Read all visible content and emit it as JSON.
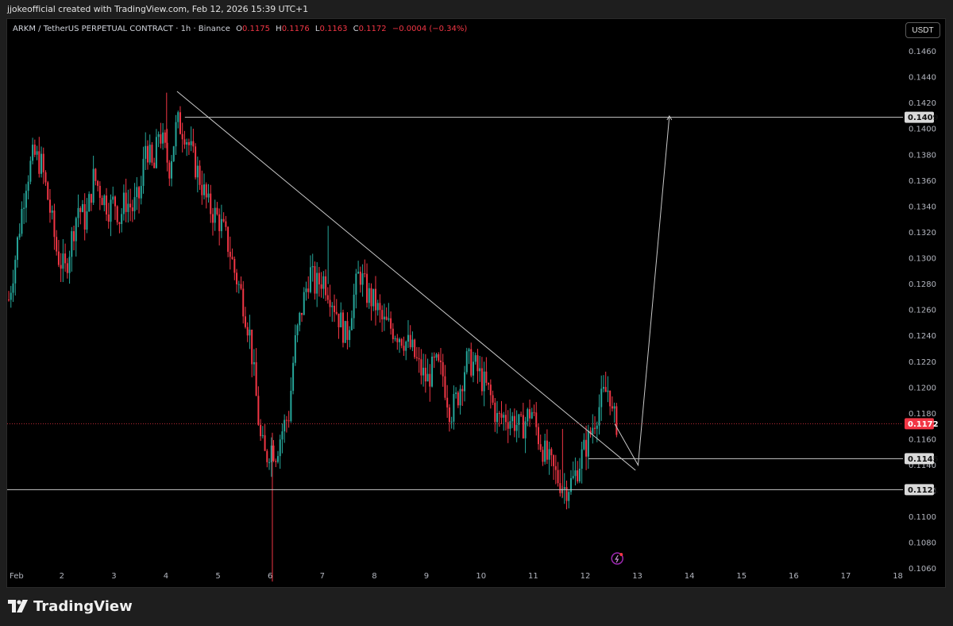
{
  "page": {
    "attribution": "jjokeofficial created with TradingView.com, Feb 12, 2026 15:39 UTC+1",
    "brand": "TradingView"
  },
  "legend": {
    "symbol": "ARKM / TetherUS PERPETUAL CONTRACT · 1h · Binance",
    "open_label": "O",
    "open": "0.1175",
    "high_label": "H",
    "high": "0.1176",
    "low_label": "L",
    "low": "0.1163",
    "close_label": "C",
    "close": "0.1172",
    "change": "−0.0004 (−0.34%)"
  },
  "toolbar": {
    "currency": "USDT"
  },
  "colors": {
    "up": "#26a69a",
    "down": "#f23645",
    "background": "#000000",
    "drawing_lines": "#c8c8c8",
    "last_price_badge": "#f23645"
  },
  "chart_data": {
    "type": "candlestick",
    "x_ticks": [
      "Feb",
      "2",
      "3",
      "4",
      "5",
      "6",
      "7",
      "8",
      "9",
      "10",
      "11",
      "12",
      "13",
      "14",
      "15",
      "16",
      "17",
      "18"
    ],
    "y_ticks": [
      "0.1460",
      "0.1440",
      "0.1420",
      "0.1400",
      "0.1380",
      "0.1360",
      "0.1340",
      "0.1320",
      "0.1300",
      "0.1280",
      "0.1260",
      "0.1240",
      "0.1220",
      "0.1200",
      "0.1180",
      "0.1160",
      "0.1140",
      "0.1120",
      "0.1100",
      "0.1080",
      "0.1060"
    ],
    "ylim": [
      0.105,
      0.148
    ],
    "xlim": [
      0.97,
      18.0
    ],
    "last_price": "0.1172",
    "horizontal_levels": [
      {
        "price": "0.1409"
      },
      {
        "price": "0.1145"
      },
      {
        "price": "0.1121"
      }
    ],
    "trendline": {
      "from": [
        4.2,
        0.1429
      ],
      "to": [
        13.0,
        0.1136
      ]
    },
    "projection_path": [
      [
        12.6,
        0.1172
      ],
      [
        13.05,
        0.114
      ],
      [
        13.65,
        0.141
      ]
    ],
    "price_path": [
      [
        0.97,
        0.1268
      ],
      [
        1.1,
        0.1302
      ],
      [
        1.3,
        0.136
      ],
      [
        1.45,
        0.138
      ],
      [
        1.6,
        0.1372
      ],
      [
        1.75,
        0.134
      ],
      [
        1.9,
        0.1303
      ],
      [
        2.05,
        0.129
      ],
      [
        2.15,
        0.131
      ],
      [
        2.3,
        0.134
      ],
      [
        2.45,
        0.1328
      ],
      [
        2.6,
        0.1363
      ],
      [
        2.75,
        0.135
      ],
      [
        2.9,
        0.1338
      ],
      [
        3.0,
        0.1345
      ],
      [
        3.1,
        0.133
      ],
      [
        3.2,
        0.1345
      ],
      [
        3.35,
        0.1338
      ],
      [
        3.5,
        0.135
      ],
      [
        3.6,
        0.139
      ],
      [
        3.75,
        0.1365
      ],
      [
        3.85,
        0.14
      ],
      [
        3.95,
        0.1385
      ],
      [
        4.05,
        0.137
      ],
      [
        4.2,
        0.1405
      ],
      [
        4.35,
        0.1398
      ],
      [
        4.5,
        0.1378
      ],
      [
        4.65,
        0.136
      ],
      [
        4.8,
        0.134
      ],
      [
        5.0,
        0.133
      ],
      [
        5.1,
        0.132
      ],
      [
        5.2,
        0.1308
      ],
      [
        5.3,
        0.129
      ],
      [
        5.45,
        0.127
      ],
      [
        5.6,
        0.124
      ],
      [
        5.7,
        0.12
      ],
      [
        5.8,
        0.116
      ],
      [
        5.9,
        0.1145
      ],
      [
        6.0,
        0.1155
      ],
      [
        6.1,
        0.115
      ],
      [
        6.2,
        0.1165
      ],
      [
        6.35,
        0.118
      ],
      [
        6.45,
        0.123
      ],
      [
        6.6,
        0.1262
      ],
      [
        6.75,
        0.129
      ],
      [
        6.85,
        0.1278
      ],
      [
        7.0,
        0.1285
      ],
      [
        7.15,
        0.1272
      ],
      [
        7.3,
        0.1255
      ],
      [
        7.45,
        0.1238
      ],
      [
        7.55,
        0.1262
      ],
      [
        7.7,
        0.129
      ],
      [
        7.85,
        0.1272
      ],
      [
        8.0,
        0.1265
      ],
      [
        8.15,
        0.125
      ],
      [
        8.35,
        0.1245
      ],
      [
        8.5,
        0.124
      ],
      [
        8.7,
        0.123
      ],
      [
        8.85,
        0.1215
      ],
      [
        9.0,
        0.1205
      ],
      [
        9.15,
        0.1218
      ],
      [
        9.3,
        0.121
      ],
      [
        9.45,
        0.118
      ],
      [
        9.6,
        0.1195
      ],
      [
        9.75,
        0.122
      ],
      [
        9.9,
        0.1218
      ],
      [
        10.0,
        0.121
      ],
      [
        10.2,
        0.1195
      ],
      [
        10.35,
        0.1175
      ],
      [
        10.5,
        0.1178
      ],
      [
        10.65,
        0.1175
      ],
      [
        10.8,
        0.1168
      ],
      [
        11.0,
        0.1183
      ],
      [
        11.15,
        0.116
      ],
      [
        11.3,
        0.1145
      ],
      [
        11.5,
        0.113
      ],
      [
        11.65,
        0.1122
      ],
      [
        11.8,
        0.1128
      ],
      [
        11.95,
        0.1145
      ],
      [
        12.1,
        0.116
      ],
      [
        12.25,
        0.118
      ],
      [
        12.4,
        0.1195
      ],
      [
        12.5,
        0.12
      ],
      [
        12.55,
        0.1178
      ],
      [
        12.65,
        0.1172
      ]
    ]
  }
}
